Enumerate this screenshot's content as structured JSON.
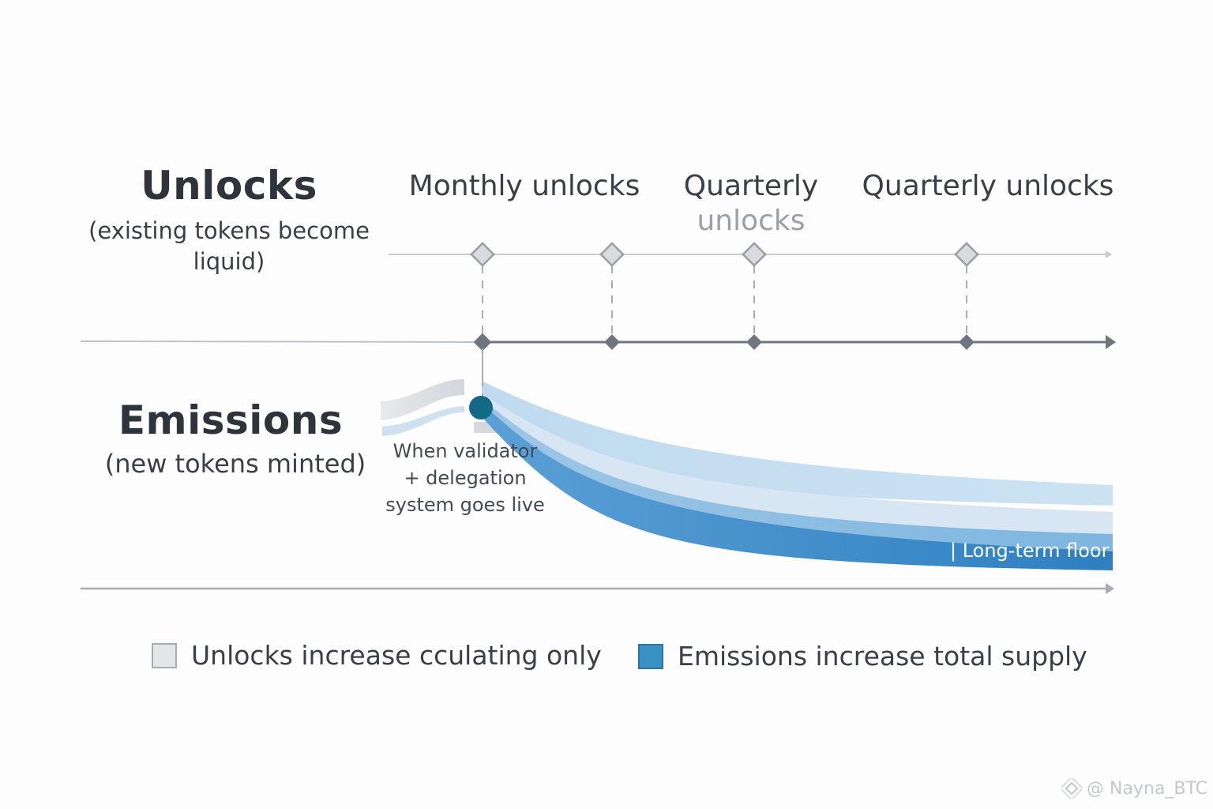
{
  "unlocks": {
    "title": "Unlocks",
    "subtitle_line1": "(existing tokens become",
    "subtitle_line2": "liquid)"
  },
  "emissions": {
    "title": "Emissions",
    "subtitle": "(new tokens minted)"
  },
  "schedule_labels": {
    "monthly": "Monthly unlocks",
    "quarterly_1_line1": "Quarterly",
    "quarterly_1_line2": "unlocks",
    "quarterly_2": "Quarterly unlocks"
  },
  "annotation": {
    "line1": "When validator",
    "line2": "+ delegation",
    "line3": "system goes live"
  },
  "floor_label": "| Long-term floor",
  "legend": {
    "unlocks_label": "Unlocks increase cculating only",
    "emissions_label": "Emissions increase total supply"
  },
  "watermark": "@ Nayna_BTC",
  "colors": {
    "axis": "#6f7680",
    "unlock_marker": "#d9dbde",
    "emission_point": "#136a86",
    "emission_deep": "#2f7fc0",
    "emission_light": "#cfe3f3",
    "legend_unlocks": "#e4e5e7",
    "legend_emissions": "#3a91c6"
  }
}
